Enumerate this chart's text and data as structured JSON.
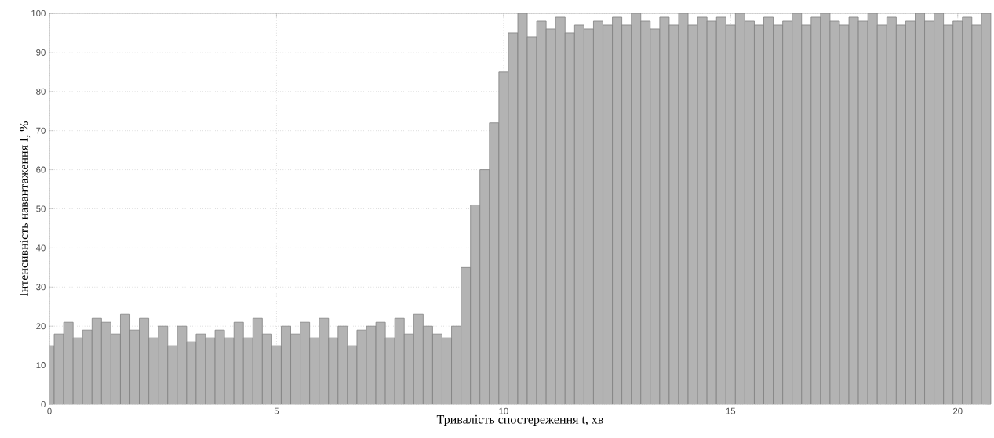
{
  "chart_data": {
    "type": "bar",
    "xlabel": "Тривалість спостереження t, хв",
    "ylabel": "Інтенсивність навантаження I, %",
    "x": [
      0,
      0.208,
      0.417,
      0.625,
      0.833,
      1.042,
      1.25,
      1.458,
      1.667,
      1.875,
      2.083,
      2.292,
      2.5,
      2.708,
      2.917,
      3.125,
      3.333,
      3.542,
      3.75,
      3.958,
      4.167,
      4.375,
      4.583,
      4.792,
      5,
      5.208,
      5.417,
      5.625,
      5.833,
      6.042,
      6.25,
      6.458,
      6.667,
      6.875,
      7.083,
      7.292,
      7.5,
      7.708,
      7.917,
      8.125,
      8.333,
      8.542,
      8.75,
      8.958,
      9.167,
      9.375,
      9.583,
      9.792,
      10,
      10.208,
      10.417,
      10.625,
      10.833,
      11.042,
      11.25,
      11.458,
      11.667,
      11.875,
      12.083,
      12.292,
      12.5,
      12.708,
      12.917,
      13.125,
      13.333,
      13.542,
      13.75,
      13.958,
      14.167,
      14.375,
      14.583,
      14.792,
      15,
      15.208,
      15.417,
      15.625,
      15.833,
      16.042,
      16.25,
      16.458,
      16.667,
      16.875,
      17.083,
      17.292,
      17.5,
      17.708,
      17.917,
      18.125,
      18.333,
      18.542,
      18.75,
      18.958,
      19.167,
      19.375,
      19.583,
      19.792,
      20,
      20.208,
      20.417,
      20.625
    ],
    "values": [
      15,
      18,
      21,
      17,
      19,
      22,
      21,
      18,
      23,
      19,
      22,
      17,
      20,
      15,
      20,
      16,
      18,
      17,
      19,
      17,
      21,
      17,
      22,
      18,
      15,
      20,
      18,
      21,
      17,
      22,
      17,
      20,
      15,
      19,
      20,
      21,
      17,
      22,
      18,
      23,
      20,
      18,
      17,
      20,
      35,
      51,
      60,
      72,
      85,
      95,
      100,
      94,
      98,
      96,
      99,
      95,
      97,
      96,
      98,
      97,
      99,
      97,
      100,
      98,
      96,
      99,
      97,
      100,
      97,
      99,
      98,
      99,
      97,
      100,
      98,
      97,
      99,
      97,
      98,
      100,
      97,
      99,
      100,
      98,
      97,
      99,
      98,
      100,
      97,
      99,
      97,
      98,
      100,
      98,
      100,
      97,
      98,
      99,
      97,
      100
    ],
    "color": "#b3b3b3",
    "xlim": [
      0,
      20.73
    ],
    "ylim": [
      0,
      100
    ],
    "xticks": [
      0,
      5,
      10,
      15,
      20
    ],
    "yticks": [
      0,
      10,
      20,
      30,
      40,
      50,
      60,
      70,
      80,
      90,
      100
    ],
    "grid": true
  }
}
